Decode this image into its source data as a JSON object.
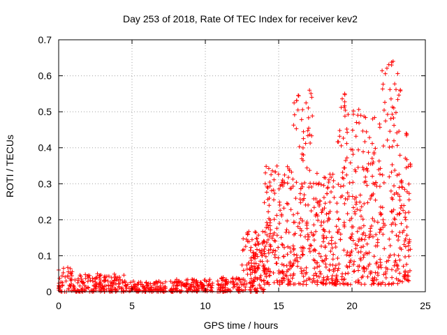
{
  "chart_data": {
    "type": "scatter",
    "title": "Day 253 of 2018, Rate Of TEC Index for receiver kev2",
    "xlabel": "GPS time / hours",
    "ylabel": "ROTI / TECUs",
    "xlim": [
      0,
      25
    ],
    "ylim": [
      0,
      0.7
    ],
    "x_ticks": [
      0,
      5,
      10,
      15,
      20,
      25
    ],
    "y_ticks": [
      0,
      0.1,
      0.2,
      0.3,
      0.4,
      0.5,
      0.6,
      0.7
    ],
    "x_tick_labels": [
      "0",
      "5",
      "10",
      "15",
      "20",
      "25"
    ],
    "y_tick_labels": [
      "0",
      "0.1",
      "0.2",
      "0.3",
      "0.4",
      "0.5",
      "0.6",
      "0.7"
    ],
    "grid": true,
    "marker": "+",
    "marker_color": "#ff0000",
    "series": [
      {
        "name": "ROTI",
        "envelope": [
          {
            "x_start": 0.0,
            "x_end": 1.0,
            "y_min": 0.0,
            "y_max": 0.07
          },
          {
            "x_start": 1.0,
            "x_end": 3.0,
            "y_min": 0.0,
            "y_max": 0.05
          },
          {
            "x_start": 3.0,
            "x_end": 4.5,
            "y_min": 0.0,
            "y_max": 0.05
          },
          {
            "x_start": 4.5,
            "x_end": 7.3,
            "y_min": 0.0,
            "y_max": 0.03
          },
          {
            "x_start": 7.6,
            "x_end": 10.5,
            "y_min": 0.0,
            "y_max": 0.035
          },
          {
            "x_start": 10.8,
            "x_end": 12.5,
            "y_min": 0.0,
            "y_max": 0.04
          },
          {
            "x_start": 12.5,
            "x_end": 14.0,
            "y_min": 0.0,
            "y_max": 0.17
          },
          {
            "x_start": 14.0,
            "x_end": 16.0,
            "y_min": 0.02,
            "y_max": 0.35
          },
          {
            "x_start": 16.0,
            "x_end": 17.3,
            "y_min": 0.02,
            "y_max": 0.56
          },
          {
            "x_start": 17.3,
            "x_end": 19.0,
            "y_min": 0.02,
            "y_max": 0.33
          },
          {
            "x_start": 19.0,
            "x_end": 20.5,
            "y_min": 0.02,
            "y_max": 0.55
          },
          {
            "x_start": 20.5,
            "x_end": 22.0,
            "y_min": 0.02,
            "y_max": 0.49
          },
          {
            "x_start": 22.0,
            "x_end": 23.3,
            "y_min": 0.02,
            "y_max": 0.64
          },
          {
            "x_start": 23.3,
            "x_end": 24.0,
            "y_min": 0.02,
            "y_max": 0.44
          }
        ],
        "notable_points": [
          {
            "x": 17.1,
            "y": 0.56
          },
          {
            "x": 19.5,
            "y": 0.55
          },
          {
            "x": 20.6,
            "y": 0.49
          },
          {
            "x": 22.7,
            "y": 0.63
          },
          {
            "x": 22.8,
            "y": 0.64
          },
          {
            "x": 23.7,
            "y": 0.44
          }
        ]
      }
    ]
  }
}
